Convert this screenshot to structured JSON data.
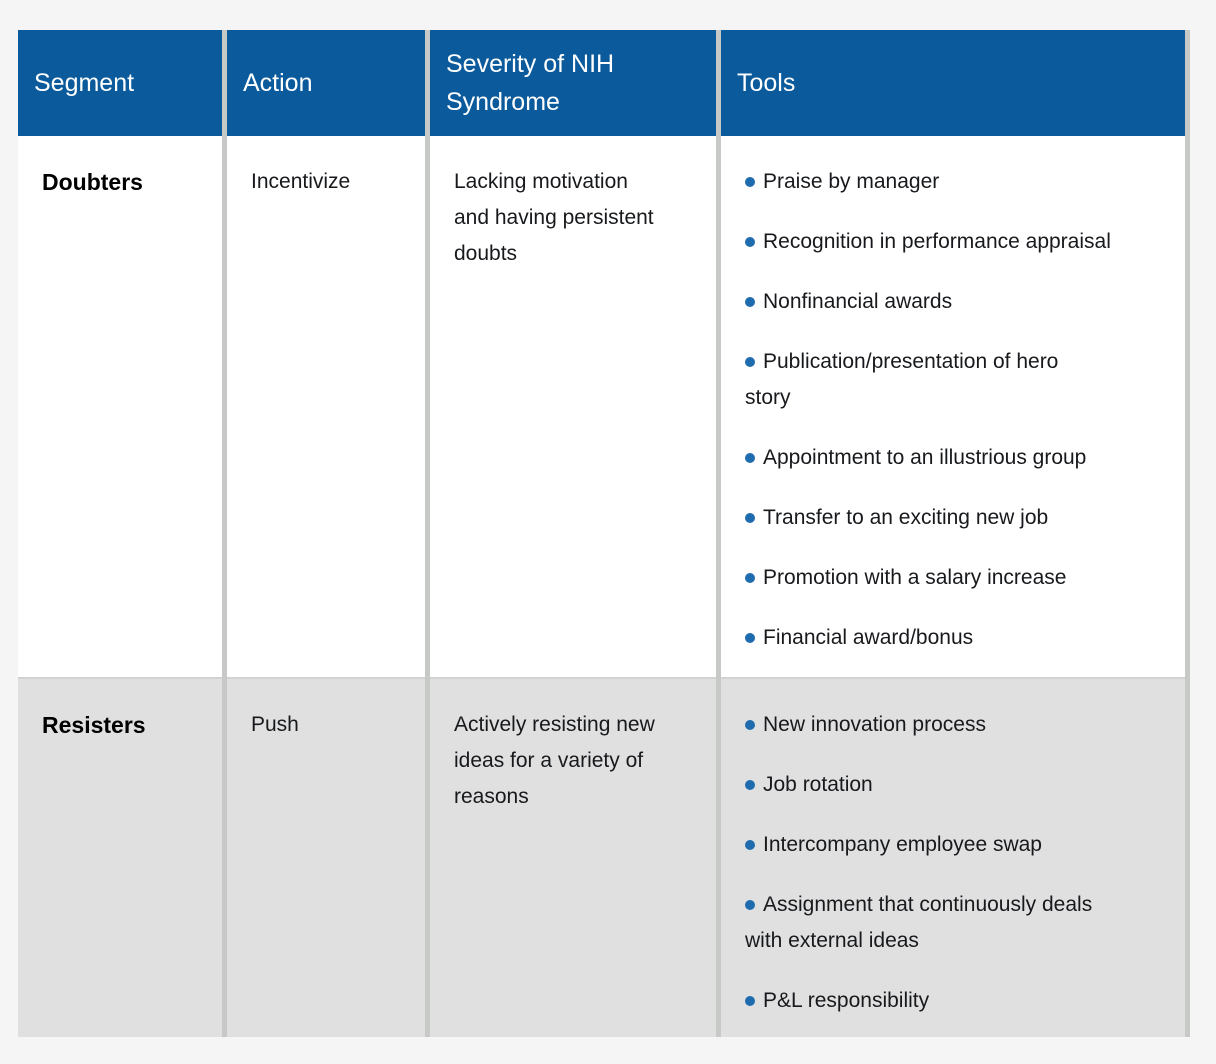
{
  "colors": {
    "header_bg": "#0b5a9c",
    "header_text": "#ffffff",
    "bullet": "#1e6cae",
    "row_alt_bg": "#e0e0e0",
    "divider": "#c7c9c7",
    "page_bg": "#f6f5f6",
    "body_text": "#17191c"
  },
  "table": {
    "columns": [
      {
        "label": "Segment"
      },
      {
        "label": "Action"
      },
      {
        "label": "Severity of NIH\nSyndrome"
      },
      {
        "label": "Tools"
      }
    ],
    "rows": [
      {
        "segment": "Doubters",
        "action": "Incentivize",
        "severity": "Lacking motivation\nand having persistent\ndoubts",
        "tools": [
          "Praise by manager",
          "Recognition in performance appraisal",
          "Nonfinancial awards",
          "Publication/presentation of hero\nstory",
          "Appointment to an illustrious group",
          "Transfer to an exciting new job",
          "Promotion with a salary increase",
          "Financial award/bonus"
        ]
      },
      {
        "segment": "Resisters",
        "action": "Push",
        "severity": "Actively resisting new\nideas for a variety of\nreasons",
        "tools": [
          "New innovation process",
          "Job rotation",
          "Intercompany employee swap",
          "Assignment that continuously deals\nwith external ideas",
          "P&L responsibility"
        ]
      }
    ]
  }
}
